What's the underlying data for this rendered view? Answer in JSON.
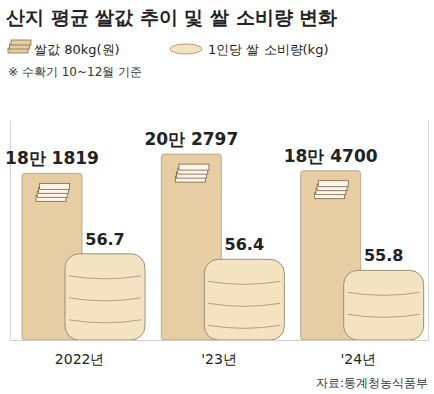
{
  "chart_data": {
    "type": "bar",
    "title": "산지 평균 쌀값 추이 및 쌀 소비량 변화",
    "subtitle": "※ 수확기 10~12월 기준",
    "source": "자료:통계청농식품부",
    "categories": [
      "2022년",
      "'23년",
      "'24년"
    ],
    "series": [
      {
        "name": "쌀값 80kg(원)",
        "color": "#e6cda3",
        "values": [
          181819,
          202797,
          184700
        ],
        "value_labels": [
          "18만 1819",
          "20만 2797",
          "18만 4700"
        ]
      },
      {
        "name": "1인당 쌀 소비량(kg)",
        "color": "#f4e3c0",
        "values": [
          56.7,
          56.4,
          55.8
        ],
        "axis": "y2"
      }
    ],
    "ylim": [
      0,
      240000
    ],
    "y2lim": [
      52,
      64
    ],
    "tick_labels": "x",
    "data_labels": true,
    "legend": "top-left"
  }
}
